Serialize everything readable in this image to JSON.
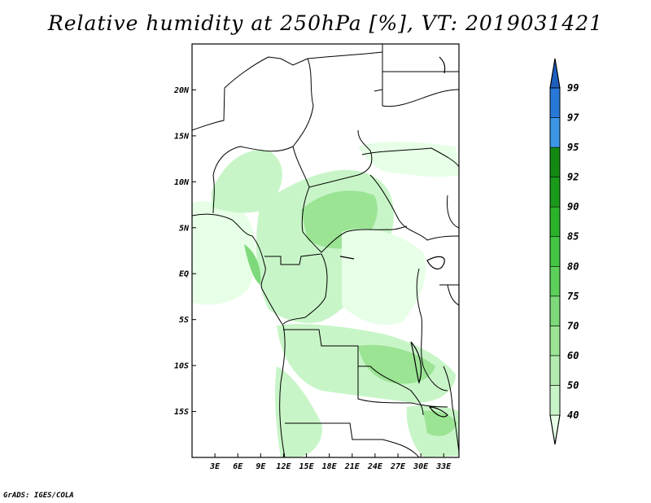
{
  "title": "Relative humidity at 250hPa [%], VT: 2019031421",
  "footer": "GrADS: IGES/COLA",
  "map": {
    "variable": "Relative humidity",
    "level": "250hPa",
    "units": "%",
    "valid_time": "2019031421",
    "lat_labels": [
      "20N",
      "15N",
      "10N",
      "5N",
      "EQ",
      "5S",
      "10S",
      "15S"
    ],
    "lon_labels": [
      "3E",
      "6E",
      "9E",
      "12E",
      "15E",
      "18E",
      "21E",
      "24E",
      "27E",
      "30E",
      "33E"
    ],
    "lat_values": [
      20,
      15,
      10,
      5,
      0,
      -5,
      -10,
      -15
    ],
    "lon_values": [
      3,
      6,
      9,
      12,
      15,
      18,
      21,
      24,
      27,
      30,
      33
    ],
    "lon_range": [
      0,
      35
    ],
    "lat_range": [
      -20,
      25
    ]
  },
  "colorbar": {
    "levels": [
      "40",
      "50",
      "60",
      "70",
      "75",
      "80",
      "85",
      "90",
      "92",
      "95",
      "97",
      "99"
    ],
    "colors": [
      "#e6ffe6",
      "#c8f5c8",
      "#b4ecb0",
      "#9be494",
      "#7ed97a",
      "#5cd05a",
      "#44c644",
      "#2ab22a",
      "#1a9a1a",
      "#128a12",
      "#3c96e6",
      "#2878d8",
      "#1e5fbe"
    ]
  }
}
